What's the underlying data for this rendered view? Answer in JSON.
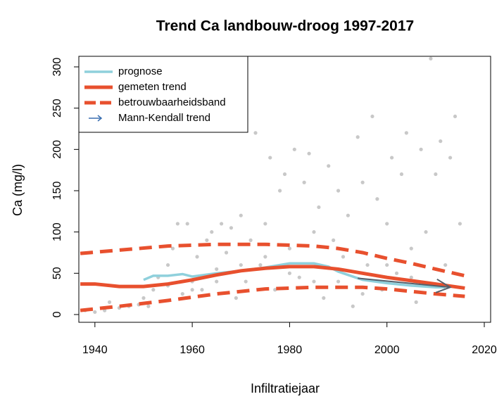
{
  "chart_data": {
    "type": "scatter",
    "title": "Trend Ca landbouw-droog 1997-2017",
    "x_label": "Infiltratiejaar",
    "y_label": "Ca (mg/l)",
    "xlim": [
      1936.7,
      2021.3
    ],
    "ylim": [
      -9.4,
      312.8
    ],
    "xticks": [
      1940,
      1960,
      1980,
      2000,
      2020
    ],
    "yticks": [
      0,
      50,
      100,
      150,
      200,
      250,
      300
    ],
    "legend": "top-left",
    "points": {
      "color": "#c8c8c8",
      "x": [
        1938,
        1940,
        1942,
        1943,
        1945,
        1947,
        1949,
        1950,
        1951,
        1952,
        1953,
        1955,
        1956,
        1957,
        1958,
        1959,
        1960,
        1961,
        1962,
        1963,
        1964,
        1965,
        1966,
        1967,
        1968,
        1969,
        1970,
        1971,
        1972,
        1973,
        1974,
        1975,
        1976,
        1977,
        1978,
        1979,
        1980,
        1981,
        1982,
        1983,
        1984,
        1985,
        1986,
        1987,
        1988,
        1989,
        1990,
        1991,
        1992,
        1993,
        1994,
        1995,
        1996,
        1997,
        1998,
        1999,
        2000,
        2001,
        2002,
        2003,
        2004,
        2005,
        2006,
        2007,
        2008,
        2009,
        2010,
        2011,
        2012,
        2013,
        2014,
        2015,
        1985,
        1975,
        1965,
        1995,
        2000,
        1990,
        1980,
        1970,
        2005,
        1960,
        1955
      ],
      "values": [
        5,
        3,
        5,
        15,
        8,
        10,
        12,
        20,
        10,
        30,
        45,
        60,
        80,
        110,
        25,
        110,
        40,
        70,
        30,
        90,
        100,
        55,
        110,
        75,
        105,
        20,
        120,
        40,
        90,
        220,
        60,
        110,
        190,
        30,
        150,
        170,
        80,
        200,
        45,
        160,
        195,
        100,
        130,
        20,
        180,
        90,
        150,
        70,
        120,
        10,
        215,
        160,
        60,
        240,
        140,
        30,
        110,
        190,
        50,
        170,
        220,
        80,
        15,
        200,
        100,
        310,
        170,
        210,
        60,
        190,
        240,
        110,
        40,
        70,
        40,
        25,
        60,
        40,
        50,
        60,
        45,
        30,
        35
      ]
    },
    "series": [
      {
        "name": "prognose",
        "color": "#8fd0dc",
        "x": [
          1950,
          1952,
          1955,
          1958,
          1960,
          1965,
          1970,
          1975,
          1980,
          1985,
          1988,
          1990,
          1995,
          2000,
          2005,
          2010,
          2012
        ],
        "values": [
          42,
          47,
          47,
          49,
          46,
          50,
          53,
          57,
          62,
          62,
          58,
          52,
          42,
          38,
          35,
          33,
          33
        ]
      },
      {
        "name": "gemeten trend",
        "color": "#e8502e",
        "x": [
          1937,
          1940,
          1945,
          1950,
          1955,
          1960,
          1965,
          1970,
          1975,
          1980,
          1985,
          1990,
          1995,
          2000,
          2005,
          2010,
          2016
        ],
        "values": [
          37,
          37,
          34,
          34,
          37,
          42,
          48,
          53,
          56,
          58,
          58,
          55,
          50,
          45,
          41,
          37,
          32
        ]
      },
      {
        "name": "betrouwbaarheidsband",
        "color": "#e8502e",
        "x": [
          1937,
          1945,
          1955,
          1965,
          1975,
          1985,
          1990,
          1995,
          2000,
          2005,
          2010,
          2016
        ],
        "values": [
          74,
          78,
          83,
          85,
          85,
          83,
          80,
          75,
          68,
          62,
          55,
          47
        ],
        "values_lower": [
          5,
          10,
          17,
          25,
          31,
          33,
          33,
          33,
          31,
          28,
          25,
          22
        ]
      },
      {
        "name": "Mann-Kendall trend",
        "color": "#3a6fb0",
        "arrow_color": "#555f6a",
        "x": [
          1994,
          2013
        ],
        "values": [
          44,
          33
        ]
      }
    ]
  }
}
